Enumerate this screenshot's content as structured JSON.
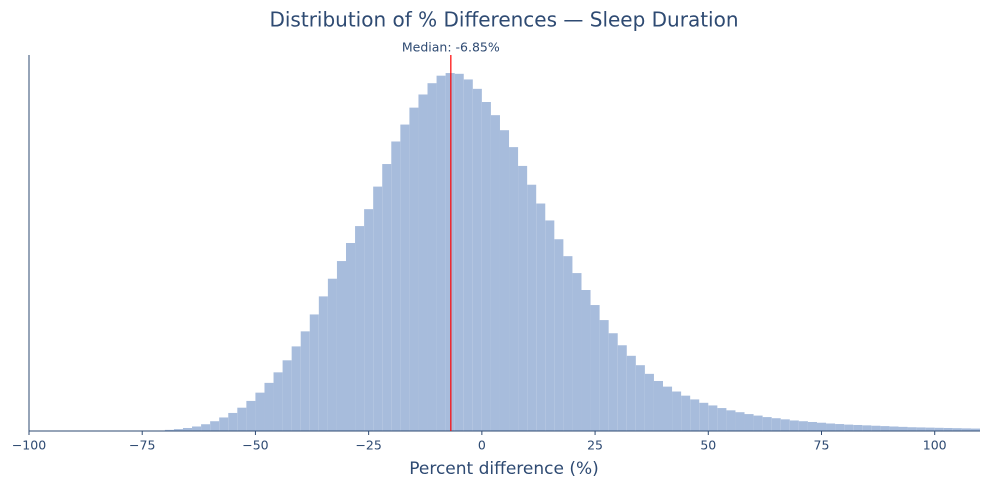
{
  "chart_data": {
    "type": "histogram",
    "title": "Distribution of % Differences — Sleep Duration",
    "x_label": "Percent difference (%)",
    "bins": [
      -100,
      -98,
      -96,
      -94,
      -92,
      -90,
      -88,
      -86,
      -84,
      -82,
      -80,
      -78,
      -76,
      -74,
      -72,
      -70,
      -68,
      -66,
      -64,
      -62,
      -60,
      -58,
      -56,
      -54,
      -52,
      -50,
      -48,
      -46,
      -44,
      -42,
      -40,
      -38,
      -36,
      -34,
      -32,
      -30,
      -28,
      -26,
      -24,
      -22,
      -20,
      -18,
      -16,
      -14,
      -12,
      -10,
      -8,
      -6,
      -4,
      -2,
      0,
      2,
      4,
      6,
      8,
      10,
      12,
      14,
      16,
      18,
      20,
      22,
      24,
      26,
      28,
      30,
      32,
      34,
      36,
      38,
      40,
      42,
      44,
      46,
      48,
      50,
      52,
      54,
      56,
      58,
      60,
      62,
      64,
      66,
      68,
      70,
      72,
      74,
      76,
      78,
      80,
      82,
      84,
      86,
      88,
      90,
      92,
      94,
      96,
      98,
      100,
      102,
      104,
      106,
      108,
      110
    ],
    "values": [
      0,
      0,
      0,
      0,
      0,
      0,
      0,
      0,
      0,
      0,
      0,
      0,
      0,
      0,
      0.1,
      0.3,
      0.5,
      0.8,
      1.2,
      1.8,
      2.6,
      3.6,
      4.8,
      6.2,
      8.0,
      10.2,
      12.8,
      15.6,
      18.8,
      22.5,
      26.5,
      31,
      35.8,
      40.5,
      45.2,
      50,
      54.5,
      59,
      65,
      71,
      77,
      81.5,
      86,
      89.5,
      92.5,
      94.5,
      95.2,
      95,
      93.5,
      91,
      87.5,
      84,
      80,
      75.5,
      70.5,
      65.5,
      60.5,
      56,
      51,
      46.5,
      42,
      37.5,
      33.5,
      29.5,
      26,
      22.8,
      20,
      17.5,
      15.2,
      13.3,
      11.8,
      10.5,
      9.4,
      8.4,
      7.5,
      6.8,
      6.1,
      5.5,
      5.0,
      4.5,
      4.1,
      3.7,
      3.4,
      3.1,
      2.8,
      2.6,
      2.4,
      2.2,
      2.0,
      1.85,
      1.7,
      1.6,
      1.5,
      1.4,
      1.3,
      1.2,
      1.1,
      1.0,
      0.95,
      0.9,
      0.85,
      0.8,
      0.75,
      0.7,
      0.65
    ],
    "color": "#a7bcdc",
    "xlim": [
      -100,
      110
    ],
    "ylim": [
      0,
      100
    ],
    "xticks": [
      {
        "value": -100,
        "label": "−100"
      },
      {
        "value": -75,
        "label": "−75"
      },
      {
        "value": -50,
        "label": "−50"
      },
      {
        "value": -25,
        "label": "−25"
      },
      0,
      25,
      50,
      75,
      100
    ],
    "median": {
      "value": -6.85,
      "label": "Median: -6.85%",
      "color": "#ff0000"
    }
  }
}
